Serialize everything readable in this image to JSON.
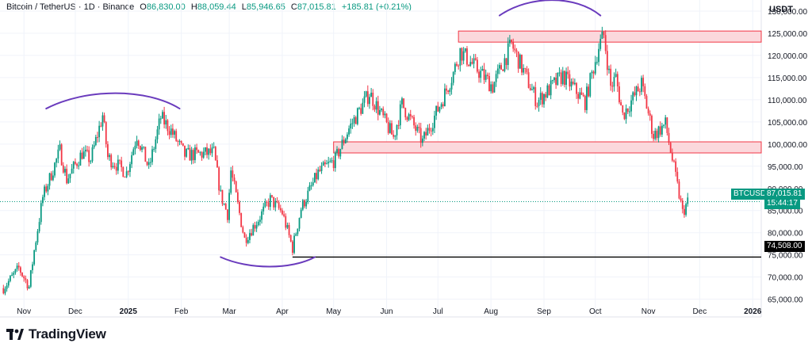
{
  "header": {
    "symbol": "Bitcoin / TetherUS · 1D · Binance",
    "open_label": "O",
    "open": "86,830.00",
    "high_label": "H",
    "high": "88,059.44",
    "low_label": "L",
    "low": "85,946.65",
    "close_label": "C",
    "close": "87,015.81",
    "change": "+185.81 (+0.21%)"
  },
  "price_axis": {
    "unit": "USDT"
  },
  "colors": {
    "up": "#089981",
    "down": "#f23645",
    "zone_fill": "#fbd8dc",
    "zone_stroke": "#f23645",
    "annotation": "#6a3bbd",
    "support": "#000000"
  },
  "tags": {
    "symbol_tag": "BTCUSDT",
    "last_price": "87,015.81",
    "countdown": "15:44:17",
    "support_price": "74,508.00"
  },
  "branding": {
    "logo_text": "TradingView"
  },
  "chart_data": {
    "type": "candlestick",
    "title": "Bitcoin / TetherUS · 1D · Binance",
    "y_ticks": [
      65000,
      70000,
      75000,
      80000,
      85000,
      90000,
      95000,
      100000,
      105000,
      110000,
      115000,
      120000,
      125000,
      130000
    ],
    "y_tick_labels": [
      "65,000.00",
      "70,000.00",
      "75,000.00",
      "80,000.00",
      "85,000.00",
      "90,000.00",
      "95,000.00",
      "100,000.00",
      "105,000.00",
      "110,000.00",
      "115,000.00",
      "120,000.00",
      "125,000.00",
      "130,000.00"
    ],
    "ylim": [
      61000,
      132500
    ],
    "x_range": [
      "2024-10-18",
      "2026-01-06"
    ],
    "x_ticks": [
      {
        "date": "2024-11-01",
        "label": "Nov"
      },
      {
        "date": "2024-12-01",
        "label": "Dec"
      },
      {
        "date": "2025-01-01",
        "label": "2025"
      },
      {
        "date": "2025-02-01",
        "label": "Feb"
      },
      {
        "date": "2025-03-01",
        "label": "Mar"
      },
      {
        "date": "2025-04-01",
        "label": "Apr"
      },
      {
        "date": "2025-05-01",
        "label": "May"
      },
      {
        "date": "2025-06-01",
        "label": "Jun"
      },
      {
        "date": "2025-07-01",
        "label": "Jul"
      },
      {
        "date": "2025-08-01",
        "label": "Aug"
      },
      {
        "date": "2025-09-01",
        "label": "Sep"
      },
      {
        "date": "2025-10-01",
        "label": "Oct"
      },
      {
        "date": "2025-11-01",
        "label": "Nov"
      },
      {
        "date": "2025-12-01",
        "label": "Dec"
      },
      {
        "date": "2026-01-01",
        "label": "2026"
      }
    ],
    "price_path": [
      [
        "2024-10-20",
        67500
      ],
      [
        "2024-10-29",
        72000
      ],
      [
        "2024-11-04",
        67800
      ],
      [
        "2024-11-07",
        76000
      ],
      [
        "2024-11-12",
        88000
      ],
      [
        "2024-11-22",
        98500
      ],
      [
        "2024-11-26",
        92000
      ],
      [
        "2024-12-05",
        98000
      ],
      [
        "2024-12-10",
        96500
      ],
      [
        "2024-12-17",
        106500
      ],
      [
        "2024-12-20",
        97000
      ],
      [
        "2024-12-31",
        93500
      ],
      [
        "2025-01-06",
        102000
      ],
      [
        "2025-01-13",
        94500
      ],
      [
        "2025-01-20",
        106000
      ],
      [
        "2025-01-26",
        103000
      ],
      [
        "2025-02-03",
        97500
      ],
      [
        "2025-02-20",
        98000
      ],
      [
        "2025-02-24",
        88500
      ],
      [
        "2025-02-28",
        84200
      ],
      [
        "2025-03-02",
        94000
      ],
      [
        "2025-03-10",
        78500
      ],
      [
        "2025-03-18",
        83000
      ],
      [
        "2025-03-25",
        87500
      ],
      [
        "2025-04-01",
        84500
      ],
      [
        "2025-04-07",
        76500
      ],
      [
        "2025-04-12",
        85500
      ],
      [
        "2025-04-22",
        93500
      ],
      [
        "2025-05-02",
        96500
      ],
      [
        "2025-05-10",
        103500
      ],
      [
        "2025-05-22",
        111500
      ],
      [
        "2025-06-05",
        101500
      ],
      [
        "2025-06-10",
        109000
      ],
      [
        "2025-06-22",
        100500
      ],
      [
        "2025-07-03",
        109500
      ],
      [
        "2025-07-10",
        116000
      ],
      [
        "2025-07-14",
        121000
      ],
      [
        "2025-08-02",
        113000
      ],
      [
        "2025-08-13",
        122500
      ],
      [
        "2025-08-28",
        109500
      ],
      [
        "2025-09-12",
        115500
      ],
      [
        "2025-09-25",
        109500
      ],
      [
        "2025-10-03",
        122000
      ],
      [
        "2025-10-06",
        124500
      ],
      [
        "2025-10-10",
        113000
      ],
      [
        "2025-10-13",
        115000
      ],
      [
        "2025-10-17",
        106500
      ],
      [
        "2025-10-28",
        113500
      ],
      [
        "2025-11-04",
        102000
      ],
      [
        "2025-11-11",
        104500
      ],
      [
        "2025-11-16",
        94500
      ],
      [
        "2025-11-21",
        84500
      ],
      [
        "2025-11-24",
        87000
      ]
    ],
    "last_price": 87015.81,
    "resistance_zone": {
      "from": "2025-07-13",
      "to": "2026-01-06",
      "low": 123000,
      "high": 125500
    },
    "support_zone": {
      "from": "2025-05-01",
      "to": "2026-01-06",
      "low": 98000,
      "high": 100500
    },
    "support_line": {
      "from": "2025-04-07",
      "to": "2026-01-06",
      "price": 74508
    },
    "annotations": [
      {
        "type": "arc-top",
        "from": "2024-11-14",
        "to": "2025-01-31",
        "price": 108000
      },
      {
        "type": "arc-bottom",
        "from": "2025-02-24",
        "to": "2025-04-20",
        "price": 74500
      },
      {
        "type": "arc-top",
        "from": "2025-08-06",
        "to": "2025-10-04",
        "price": 129000
      }
    ]
  }
}
